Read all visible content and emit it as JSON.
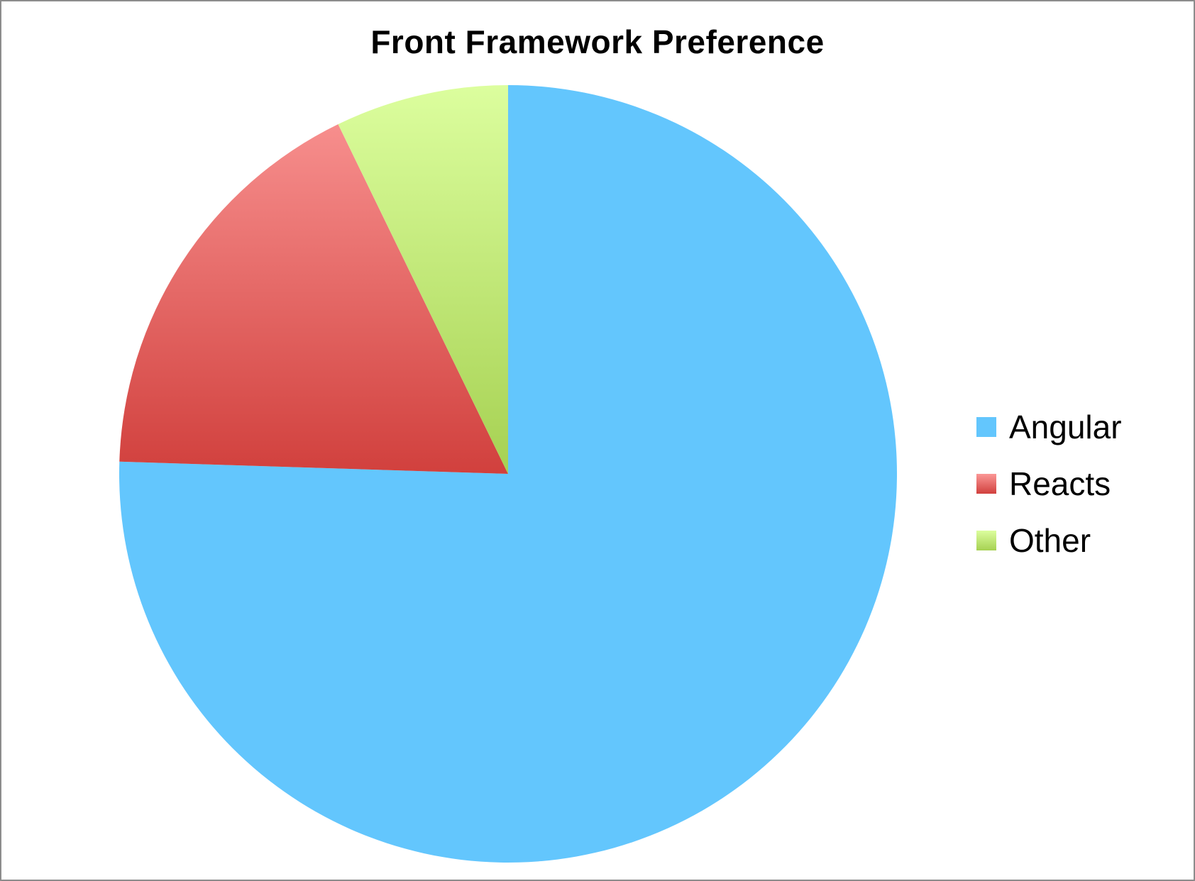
{
  "chart_data": {
    "type": "pie",
    "title": "Front Framework Preference",
    "categories": [
      "Angular",
      "Reacts",
      "Other"
    ],
    "values": [
      75.5,
      17.3,
      7.2
    ],
    "start_angle_deg": 0,
    "direction": "clockwise",
    "legend_position": "right",
    "colors": {
      "Angular": {
        "top": "#63c6fd",
        "bottom": "#63c6fd"
      },
      "Reacts": {
        "top": "#fb9796",
        "bottom": "#d1403d"
      },
      "Other": {
        "top": "#dcfe9e",
        "bottom": "#a6d152"
      }
    }
  }
}
